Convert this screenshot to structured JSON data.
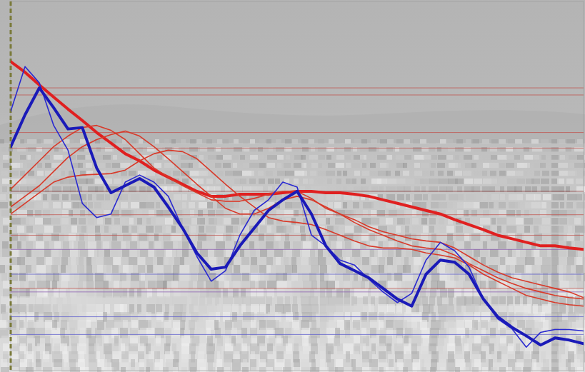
{
  "chart_data": {
    "type": "line",
    "x": [
      0,
      2.5,
      5,
      7.5,
      10,
      12.5,
      15,
      17.5,
      20,
      22.5,
      25,
      27.5,
      30,
      32.5,
      35,
      37.5,
      40,
      42.5,
      45,
      47.5,
      50,
      52.5,
      55,
      57.5,
      60,
      62.5,
      65,
      67.5,
      70,
      72.5,
      75,
      77.5,
      80,
      82.5,
      85,
      87.5,
      90,
      92.5,
      95,
      97.5,
      100
    ],
    "xlim": [
      0,
      100
    ],
    "ylim": [
      0,
      521
    ],
    "tick_labels": false,
    "grid": false,
    "series": [
      {
        "color": "#e02020",
        "line_style": "thick",
        "values": [
          436,
          421,
          403,
          386,
          369,
          353,
          336,
          321,
          306,
          296,
          283,
          273,
          263,
          253,
          246,
          246,
          249,
          249,
          249,
          251,
          253,
          253,
          251,
          251,
          249,
          246,
          241,
          236,
          231,
          226,
          221,
          213,
          206,
          199,
          191,
          186,
          181,
          176,
          176,
          173,
          171
        ]
      },
      {
        "color": "#d83a2a",
        "line_style": "thin",
        "values": [
          256,
          276,
          296,
          316,
          331,
          343,
          346,
          339,
          326,
          306,
          286,
          273,
          261,
          251,
          241,
          239,
          239,
          243,
          249,
          253,
          253,
          243,
          229,
          221,
          213,
          203,
          196,
          191,
          186,
          183,
          181,
          173,
          161,
          149,
          139,
          131,
          126,
          121,
          116,
          111,
          103
        ]
      },
      {
        "color": "#d83a2a",
        "line_style": "thin",
        "values": [
          231,
          246,
          261,
          281,
          301,
          316,
          326,
          333,
          338,
          331,
          316,
          299,
          281,
          263,
          246,
          229,
          221,
          221,
          229,
          241,
          246,
          241,
          231,
          221,
          209,
          199,
          191,
          183,
          176,
          173,
          171,
          163,
          151,
          141,
          131,
          123,
          116,
          111,
          106,
          103,
          101
        ]
      },
      {
        "color": "#d83a2a",
        "line_style": "thin",
        "values": [
          221,
          236,
          251,
          266,
          273,
          276,
          277,
          278,
          283,
          296,
          306,
          311,
          309,
          299,
          281,
          263,
          246,
          231,
          216,
          211,
          209,
          206,
          199,
          191,
          183,
          176,
          173,
          173,
          171,
          166,
          163,
          159,
          149,
          136,
          126,
          116,
          106,
          101,
          96,
          93,
          91
        ]
      },
      {
        "color": "#2a2ad0",
        "line_style": "thin",
        "values": [
          366,
          429,
          406,
          346,
          311,
          236,
          216,
          221,
          266,
          276,
          266,
          246,
          201,
          161,
          126,
          141,
          191,
          226,
          241,
          266,
          259,
          191,
          176,
          156,
          149,
          129,
          111,
          96,
          109,
          156,
          181,
          169,
          146,
          101,
          73,
          59,
          33,
          54,
          58,
          58,
          56
        ]
      },
      {
        "color": "#1a1ab8",
        "line_style": "thick",
        "values": [
          316,
          361,
          399,
          371,
          341,
          343,
          286,
          251,
          261,
          271,
          259,
          231,
          201,
          166,
          143,
          146,
          176,
          201,
          226,
          241,
          253,
          221,
          176,
          151,
          141,
          131,
          116,
          101,
          91,
          136,
          156,
          153,
          136,
          101,
          76,
          61,
          49,
          36,
          46,
          43,
          38
        ]
      }
    ],
    "reference_lines": {
      "values": [
        399,
        389,
        336,
        314,
        253,
        220,
        191,
        116,
        171,
        136,
        111,
        76,
        51
      ],
      "colors": [
        "#c0504a",
        "#c0504a",
        "#c0504a",
        "#c0504a",
        "#8b3a3a",
        "#c0504a",
        "#c0504a",
        "#c0504a",
        "#8a5ab0",
        "#5a5acd",
        "#8a5ab0",
        "#5a5acd",
        "#5a5acd"
      ]
    }
  }
}
